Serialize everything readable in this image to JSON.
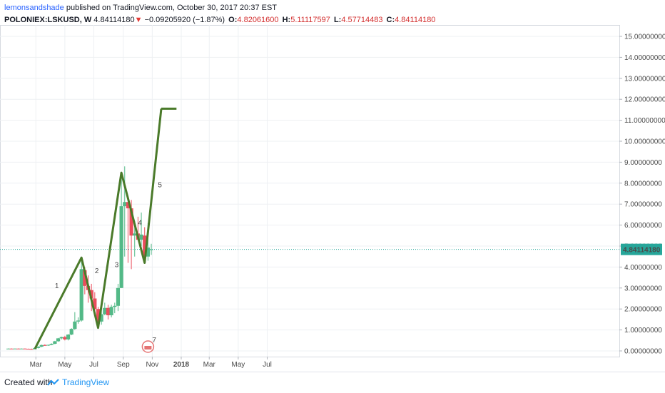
{
  "header": {
    "author": "lemonsandshade",
    "published_text": "published on TradingView.com, October 30, 2017 20:37 EST",
    "symbol": "POLONIEX:LSKUSD, W",
    "price": "4.84114180",
    "change_arrow": "▼",
    "change": "−0.09205920 (−1.87%)",
    "o_label": "O:",
    "o_value": "4.82061600",
    "h_label": "H:",
    "h_value": "5.11117597",
    "l_label": "L:",
    "l_value": "4.57714483",
    "c_label": "C:",
    "c_value": "4.84114180"
  },
  "footer": {
    "created_with": "Created with",
    "brand": "TradingView"
  },
  "colors": {
    "up": "#53b987",
    "down": "#eb4d5c",
    "wave": "#4a7a2a",
    "price_line": "#26a69a",
    "grid": "#eef0f3",
    "price_label_bg": "#26a69a"
  },
  "chart_data": {
    "type": "candlestick",
    "timeframe": "W",
    "y_axis": {
      "min": 0,
      "max": 15,
      "step": 1,
      "tick_labels": [
        "0.00000000",
        "1.00000000",
        "2.00000000",
        "3.00000000",
        "4.00000000",
        "5.00000000",
        "6.00000000",
        "7.00000000",
        "8.00000000",
        "9.00000000",
        "10.00000000",
        "11.00000000",
        "12.00000000",
        "13.00000000",
        "14.00000000",
        "15.00000000"
      ]
    },
    "x_axis": {
      "tick_labels": [
        "Mar",
        "May",
        "Jul",
        "Sep",
        "Nov",
        "2018",
        "Mar",
        "May",
        "Jul"
      ]
    },
    "last_price": 4.8411418,
    "last_price_label": "4.84114180",
    "candles": [
      {
        "date": "2017-01-02",
        "o": 0.1,
        "h": 0.12,
        "l": 0.09,
        "c": 0.11
      },
      {
        "date": "2017-01-09",
        "o": 0.11,
        "h": 0.12,
        "l": 0.09,
        "c": 0.1
      },
      {
        "date": "2017-01-16",
        "o": 0.1,
        "h": 0.12,
        "l": 0.09,
        "c": 0.11
      },
      {
        "date": "2017-01-23",
        "o": 0.11,
        "h": 0.12,
        "l": 0.09,
        "c": 0.1
      },
      {
        "date": "2017-01-30",
        "o": 0.1,
        "h": 0.12,
        "l": 0.09,
        "c": 0.11
      },
      {
        "date": "2017-02-06",
        "o": 0.11,
        "h": 0.12,
        "l": 0.09,
        "c": 0.1
      },
      {
        "date": "2017-02-13",
        "o": 0.1,
        "h": 0.11,
        "l": 0.08,
        "c": 0.09
      },
      {
        "date": "2017-02-20",
        "o": 0.09,
        "h": 0.11,
        "l": 0.07,
        "c": 0.08
      },
      {
        "date": "2017-02-27",
        "o": 0.08,
        "h": 0.15,
        "l": 0.07,
        "c": 0.14
      },
      {
        "date": "2017-03-06",
        "o": 0.14,
        "h": 0.22,
        "l": 0.12,
        "c": 0.2
      },
      {
        "date": "2017-03-13",
        "o": 0.2,
        "h": 0.3,
        "l": 0.18,
        "c": 0.28
      },
      {
        "date": "2017-03-20",
        "o": 0.28,
        "h": 0.32,
        "l": 0.24,
        "c": 0.26
      },
      {
        "date": "2017-03-27",
        "o": 0.26,
        "h": 0.3,
        "l": 0.24,
        "c": 0.29
      },
      {
        "date": "2017-04-03",
        "o": 0.29,
        "h": 0.36,
        "l": 0.27,
        "c": 0.34
      },
      {
        "date": "2017-04-10",
        "o": 0.34,
        "h": 0.48,
        "l": 0.32,
        "c": 0.46
      },
      {
        "date": "2017-04-17",
        "o": 0.46,
        "h": 0.62,
        "l": 0.44,
        "c": 0.6
      },
      {
        "date": "2017-04-24",
        "o": 0.6,
        "h": 0.68,
        "l": 0.55,
        "c": 0.66
      },
      {
        "date": "2017-05-01",
        "o": 0.66,
        "h": 0.72,
        "l": 0.5,
        "c": 0.55
      },
      {
        "date": "2017-05-08",
        "o": 0.55,
        "h": 0.8,
        "l": 0.5,
        "c": 0.78
      },
      {
        "date": "2017-05-15",
        "o": 0.78,
        "h": 1.08,
        "l": 0.75,
        "c": 1.05
      },
      {
        "date": "2017-05-22",
        "o": 1.05,
        "h": 1.85,
        "l": 1.0,
        "c": 1.4
      },
      {
        "date": "2017-05-29",
        "o": 1.4,
        "h": 1.6,
        "l": 1.3,
        "c": 1.45
      },
      {
        "date": "2017-06-05",
        "o": 1.45,
        "h": 4.3,
        "l": 1.4,
        "c": 3.9
      },
      {
        "date": "2017-06-12",
        "o": 3.85,
        "h": 4.0,
        "l": 2.7,
        "c": 3.1
      },
      {
        "date": "2017-06-19",
        "o": 3.1,
        "h": 3.6,
        "l": 2.3,
        "c": 2.9
      },
      {
        "date": "2017-06-26",
        "o": 2.9,
        "h": 3.2,
        "l": 1.9,
        "c": 2.5
      },
      {
        "date": "2017-07-03",
        "o": 2.5,
        "h": 2.8,
        "l": 1.7,
        "c": 2.0
      },
      {
        "date": "2017-07-10",
        "o": 2.0,
        "h": 2.1,
        "l": 1.2,
        "c": 1.4
      },
      {
        "date": "2017-07-17",
        "o": 1.4,
        "h": 2.0,
        "l": 1.25,
        "c": 1.75
      },
      {
        "date": "2017-07-24",
        "o": 1.75,
        "h": 2.3,
        "l": 1.7,
        "c": 2.05
      },
      {
        "date": "2017-07-31",
        "o": 2.05,
        "h": 2.2,
        "l": 1.5,
        "c": 1.7
      },
      {
        "date": "2017-08-07",
        "o": 1.7,
        "h": 2.2,
        "l": 1.6,
        "c": 2.1
      },
      {
        "date": "2017-08-14",
        "o": 2.1,
        "h": 2.3,
        "l": 1.8,
        "c": 2.15
      },
      {
        "date": "2017-08-21",
        "o": 2.15,
        "h": 3.2,
        "l": 1.9,
        "c": 3.0
      },
      {
        "date": "2017-08-28",
        "o": 3.0,
        "h": 8.5,
        "l": 3.0,
        "c": 6.9
      },
      {
        "date": "2017-09-04",
        "o": 6.9,
        "h": 8.8,
        "l": 4.5,
        "c": 7.1
      },
      {
        "date": "2017-09-11",
        "o": 7.1,
        "h": 7.4,
        "l": 4.2,
        "c": 6.8
      },
      {
        "date": "2017-09-18",
        "o": 6.8,
        "h": 7.2,
        "l": 3.9,
        "c": 5.5
      },
      {
        "date": "2017-09-25",
        "o": 5.5,
        "h": 6.2,
        "l": 4.5,
        "c": 5.6
      },
      {
        "date": "2017-10-02",
        "o": 5.6,
        "h": 6.4,
        "l": 5.3,
        "c": 5.3
      },
      {
        "date": "2017-10-09",
        "o": 5.3,
        "h": 6.6,
        "l": 5.0,
        "c": 5.55
      },
      {
        "date": "2017-10-16",
        "o": 5.5,
        "h": 5.9,
        "l": 4.3,
        "c": 4.5
      },
      {
        "date": "2017-10-23",
        "o": 4.5,
        "h": 6.1,
        "l": 4.3,
        "c": 4.93
      },
      {
        "date": "2017-10-30",
        "o": 4.82,
        "h": 5.11,
        "l": 4.58,
        "c": 4.84
      }
    ],
    "wave_points": [
      {
        "date": "2017-02-27",
        "y": 0.1
      },
      {
        "date": "2017-06-05",
        "y": 4.45
      },
      {
        "date": "2017-07-10",
        "y": 1.1
      },
      {
        "date": "2017-08-28",
        "y": 8.5
      },
      {
        "date": "2017-10-16",
        "y": 4.2
      },
      {
        "date": "2017-11-20",
        "y": 11.55
      }
    ],
    "target_level": {
      "date_start": "2017-11-20",
      "date_end": "2017-12-04",
      "y": 11.55
    },
    "wave_labels": [
      {
        "text": "1",
        "date": "2017-04-10",
        "y": 3.0
      },
      {
        "text": "2",
        "date": "2017-07-03",
        "y": 3.7
      },
      {
        "text": "3",
        "date": "2017-08-14",
        "y": 4.0
      },
      {
        "text": "4",
        "date": "2017-10-02",
        "y": 6.0
      },
      {
        "text": "5",
        "date": "2017-11-13",
        "y": 7.8
      }
    ]
  }
}
